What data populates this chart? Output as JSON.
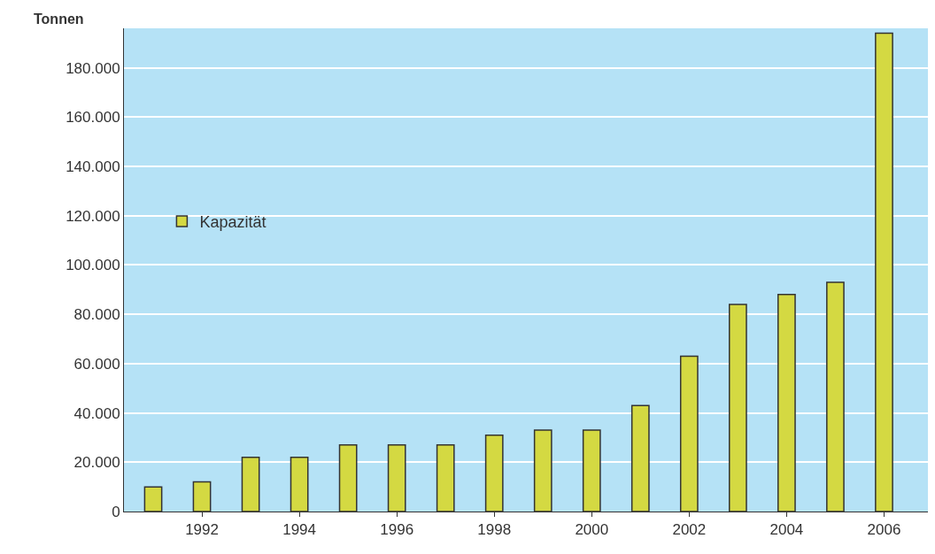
{
  "chart_data": {
    "type": "bar",
    "ylabel": "Tonnen",
    "x": [
      1991,
      1992,
      1993,
      1994,
      1995,
      1996,
      1997,
      1998,
      1999,
      2000,
      2001,
      2002,
      2003,
      2004,
      2005,
      2006
    ],
    "series": [
      {
        "name": "Kapazität",
        "color": "#d4d942",
        "values": [
          10000,
          12000,
          22000,
          22000,
          27000,
          27000,
          27000,
          31000,
          33000,
          33000,
          43000,
          63000,
          84000,
          88000,
          93000,
          194000
        ]
      }
    ],
    "xlim": [
      1990.4,
      2006.9
    ],
    "xticks": [
      1992,
      1994,
      1996,
      1998,
      2000,
      2002,
      2004,
      2006
    ],
    "ylim": [
      0,
      196000
    ],
    "yticks": [
      0,
      {
        "value": 20000,
        "label": "20.000"
      },
      {
        "value": 40000,
        "label": "40.000"
      },
      {
        "value": 60000,
        "label": "60.000"
      },
      {
        "value": 80000,
        "label": "80.000"
      },
      {
        "value": 100000,
        "label": "100.000"
      },
      {
        "value": 120000,
        "label": "120.000"
      },
      {
        "value": 140000,
        "label": "140.000"
      },
      {
        "value": 160000,
        "label": "160.000"
      },
      {
        "value": 180000,
        "label": "180.000"
      }
    ],
    "grid": "y",
    "legend": "left"
  }
}
